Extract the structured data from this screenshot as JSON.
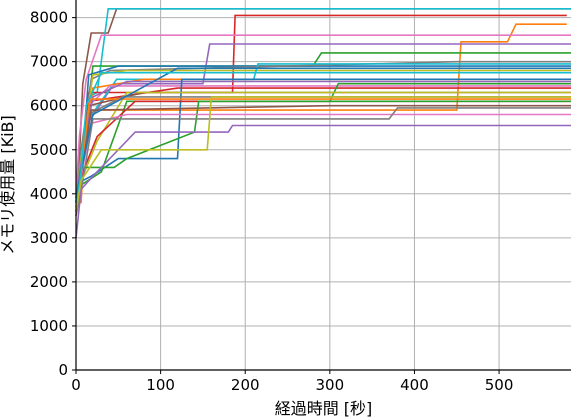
{
  "chart_data": {
    "type": "line",
    "title": "",
    "xlabel": "経過時間 [秒]",
    "ylabel": "メモリ使用量 [KiB]",
    "xlim": [
      0,
      585
    ],
    "ylim": [
      0,
      8400
    ],
    "xticks": [
      0,
      100,
      200,
      300,
      400,
      500
    ],
    "yticks": [
      0,
      1000,
      2000,
      3000,
      4000,
      5000,
      6000,
      7000,
      8000
    ],
    "grid": true,
    "legend": "none",
    "series": [
      {
        "color": "#8c564b",
        "x": [
          0,
          3,
          8,
          18,
          38,
          48,
          600
        ],
        "y": [
          3800,
          4400,
          6500,
          7650,
          7650,
          8200,
          8200
        ]
      },
      {
        "color": "#17becf",
        "x": [
          0,
          5,
          15,
          25,
          38,
          600
        ],
        "y": [
          3800,
          4500,
          6200,
          6300,
          8200,
          8200
        ]
      },
      {
        "color": "#d62728",
        "x": [
          0,
          6,
          15,
          60,
          185,
          188,
          580
        ],
        "y": [
          3900,
          4600,
          6300,
          6300,
          6300,
          8050,
          8050
        ]
      },
      {
        "color": "#ff7f0e",
        "x": [
          0,
          6,
          12,
          150,
          450,
          455,
          510,
          520,
          580
        ],
        "y": [
          3800,
          3800,
          5900,
          5900,
          5900,
          7450,
          7450,
          7850,
          7850
        ]
      },
      {
        "color": "#e377c2",
        "x": [
          0,
          4,
          12,
          30,
          600
        ],
        "y": [
          4000,
          5300,
          6600,
          7600,
          7600
        ]
      },
      {
        "color": "#9467bd",
        "x": [
          0,
          6,
          14,
          45,
          150,
          158,
          600
        ],
        "y": [
          3700,
          4300,
          5600,
          6500,
          6500,
          7400,
          7400
        ]
      },
      {
        "color": "#2ca02c",
        "x": [
          0,
          6,
          20,
          100,
          280,
          290,
          600
        ],
        "y": [
          3900,
          4500,
          6900,
          6900,
          6900,
          7200,
          7200
        ]
      },
      {
        "color": "#1f77b4",
        "x": [
          0,
          6,
          15,
          50,
          600
        ],
        "y": [
          3600,
          4300,
          6700,
          6900,
          6900
        ]
      },
      {
        "color": "#7f7f7f",
        "x": [
          0,
          6,
          18,
          40,
          450,
          600
        ],
        "y": [
          3900,
          5000,
          6600,
          6800,
          7000,
          7000
        ]
      },
      {
        "color": "#bcbd22",
        "x": [
          0,
          6,
          20,
          60,
          600
        ],
        "y": [
          3900,
          4800,
          6700,
          6800,
          6800
        ]
      },
      {
        "color": "#17becf",
        "x": [
          0,
          6,
          15,
          48,
          210,
          215,
          600
        ],
        "y": [
          3800,
          4400,
          5700,
          6600,
          6600,
          6950,
          6950
        ]
      },
      {
        "color": "#d62728",
        "x": [
          0,
          6,
          15,
          120,
          600
        ],
        "y": [
          3800,
          4600,
          6100,
          6400,
          6400
        ]
      },
      {
        "color": "#ff7f0e",
        "x": [
          0,
          6,
          20,
          80,
          600
        ],
        "y": [
          3800,
          4500,
          6400,
          6600,
          6600
        ]
      },
      {
        "color": "#e377c2",
        "x": [
          0,
          6,
          15,
          40,
          600
        ],
        "y": [
          3800,
          4200,
          6000,
          6450,
          6450
        ]
      },
      {
        "color": "#8c564b",
        "x": [
          0,
          6,
          15,
          80,
          600
        ],
        "y": [
          3800,
          4600,
          6000,
          6300,
          6300
        ]
      },
      {
        "color": "#9467bd",
        "x": [
          0,
          6,
          20,
          60,
          600
        ],
        "y": [
          3900,
          4700,
          6200,
          6550,
          6550
        ]
      },
      {
        "color": "#1f77b4",
        "x": [
          0,
          8,
          18,
          50,
          120,
          125,
          600
        ],
        "y": [
          3800,
          4300,
          4400,
          4800,
          4800,
          6600,
          6600
        ]
      },
      {
        "color": "#2ca02c",
        "x": [
          0,
          6,
          30,
          60,
          300,
          310,
          600
        ],
        "y": [
          3800,
          4200,
          4500,
          6100,
          6100,
          6500,
          6500
        ]
      },
      {
        "color": "#bcbd22",
        "x": [
          0,
          6,
          25,
          60,
          600
        ],
        "y": [
          3900,
          4300,
          5200,
          6300,
          6300
        ]
      },
      {
        "color": "#7f7f7f",
        "x": [
          0,
          6,
          14,
          55,
          600
        ],
        "y": [
          3800,
          4100,
          5800,
          6200,
          6200
        ]
      },
      {
        "color": "#ff7f0e",
        "x": [
          0,
          6,
          16,
          600
        ],
        "y": [
          3800,
          4400,
          6150,
          6150
        ]
      },
      {
        "color": "#d62728",
        "x": [
          0,
          6,
          25,
          70,
          600
        ],
        "y": [
          3600,
          4400,
          5300,
          6100,
          6100
        ]
      },
      {
        "color": "#8c564b",
        "x": [
          0,
          6,
          18,
          300,
          600
        ],
        "y": [
          3500,
          4400,
          5900,
          6000,
          6000
        ]
      },
      {
        "color": "#2ca02c",
        "x": [
          0,
          6,
          45,
          60,
          140,
          145,
          600
        ],
        "y": [
          3600,
          4600,
          4600,
          4800,
          5400,
          6100,
          6100
        ]
      },
      {
        "color": "#e377c2",
        "x": [
          0,
          6,
          18,
          60,
          600
        ],
        "y": [
          3600,
          4400,
          5600,
          5800,
          5800
        ]
      },
      {
        "color": "#7f7f7f",
        "x": [
          0,
          8,
          20,
          370,
          380,
          600
        ],
        "y": [
          3500,
          4300,
          5700,
          5700,
          5950,
          5950
        ]
      },
      {
        "color": "#9467bd",
        "x": [
          0,
          6,
          20,
          70,
          180,
          185,
          600
        ],
        "y": [
          3000,
          4100,
          4400,
          5400,
          5400,
          5550,
          5550
        ]
      },
      {
        "color": "#1f77b4",
        "x": [
          0,
          6,
          20,
          120,
          600
        ],
        "y": [
          3900,
          4500,
          5800,
          6850,
          6850
        ]
      },
      {
        "color": "#17becf",
        "x": [
          0,
          6,
          12,
          30,
          600
        ],
        "y": [
          3700,
          4500,
          6000,
          6750,
          6750
        ]
      },
      {
        "color": "#bcbd22",
        "x": [
          0,
          6,
          30,
          155,
          160,
          600
        ],
        "y": [
          3600,
          4300,
          5000,
          5000,
          6200,
          6200
        ]
      }
    ]
  }
}
